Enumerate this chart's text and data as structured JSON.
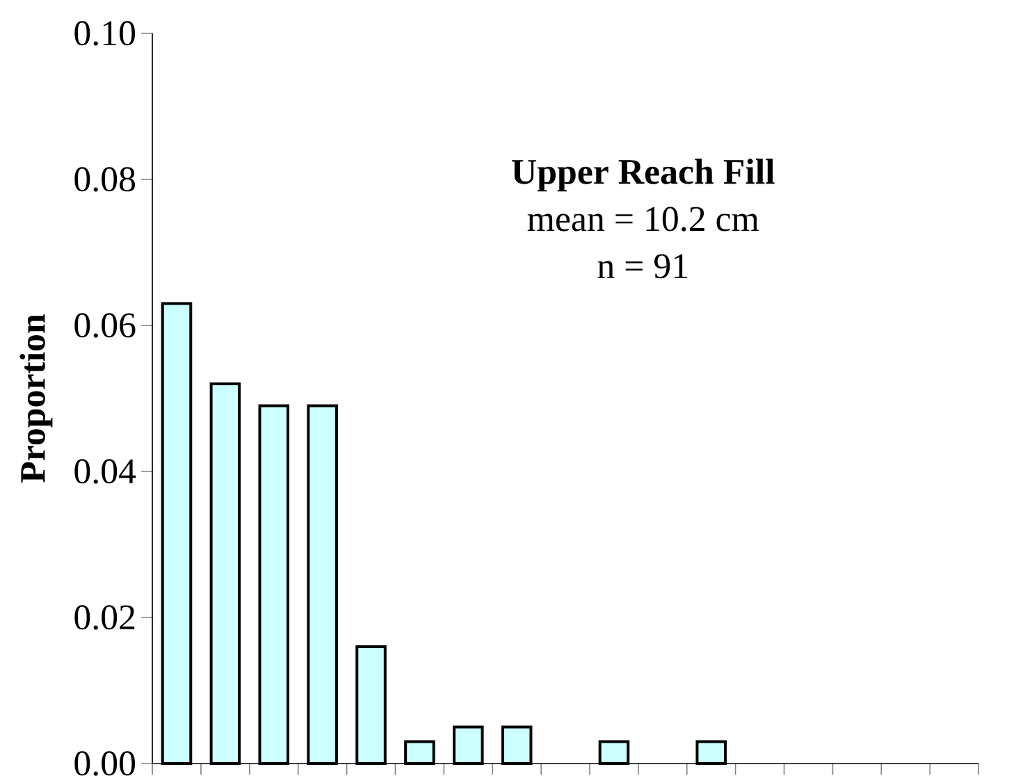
{
  "chart_data": {
    "type": "bar",
    "title": "Upper Reach Fill",
    "annotations": [
      "mean = 10.2 cm",
      "n = 91"
    ],
    "ylabel": "Proportion",
    "categories": [
      null,
      null,
      null,
      null,
      null,
      null,
      null,
      null,
      null,
      null,
      null,
      null,
      null,
      null,
      null,
      null,
      null
    ],
    "values": [
      0.063,
      0.052,
      0.049,
      0.049,
      0.016,
      0.003,
      0.005,
      0.005,
      null,
      0.003,
      null,
      0.003,
      null,
      null,
      null,
      null,
      null
    ],
    "color": "#ccffff",
    "ylim": [
      0,
      0.1
    ],
    "yticks": [
      {
        "value": 0,
        "label": "0.00"
      },
      {
        "value": 0.02,
        "label": "0.02"
      },
      {
        "value": 0.04,
        "label": "0.04"
      },
      {
        "value": 0.06,
        "label": "0.06"
      },
      {
        "value": 0.08,
        "label": "0.08"
      },
      {
        "value": 0.1,
        "label": "0.10"
      }
    ],
    "grid": false
  }
}
